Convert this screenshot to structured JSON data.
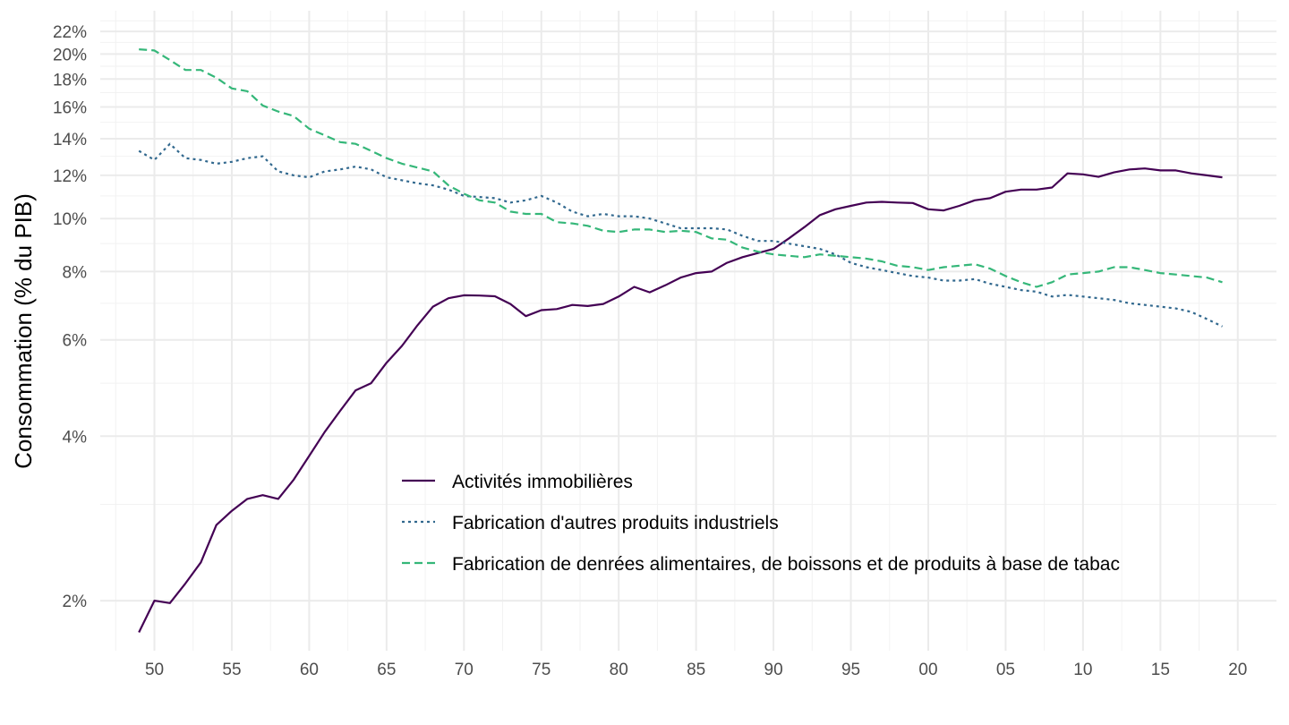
{
  "chart_data": {
    "type": "line",
    "title": "",
    "xlabel": "",
    "ylabel": "Consommation (% du PIB)",
    "y_scale": "log",
    "ylim": [
      1.62,
      24.0
    ],
    "xlim": [
      1946.5,
      2022.5
    ],
    "grid": true,
    "legend_position": "center",
    "x_ticks": [
      {
        "value": 1950,
        "label": "50"
      },
      {
        "value": 1955,
        "label": "55"
      },
      {
        "value": 1960,
        "label": "60"
      },
      {
        "value": 1965,
        "label": "65"
      },
      {
        "value": 1970,
        "label": "70"
      },
      {
        "value": 1975,
        "label": "75"
      },
      {
        "value": 1980,
        "label": "80"
      },
      {
        "value": 1985,
        "label": "85"
      },
      {
        "value": 1990,
        "label": "90"
      },
      {
        "value": 1995,
        "label": "95"
      },
      {
        "value": 2000,
        "label": "00"
      },
      {
        "value": 2005,
        "label": "05"
      },
      {
        "value": 2010,
        "label": "10"
      },
      {
        "value": 2015,
        "label": "15"
      },
      {
        "value": 2020,
        "label": "20"
      }
    ],
    "y_ticks": [
      {
        "value": 2,
        "label": "2%"
      },
      {
        "value": 4,
        "label": "4%"
      },
      {
        "value": 6,
        "label": "6%"
      },
      {
        "value": 8,
        "label": "8%"
      },
      {
        "value": 10,
        "label": "10%"
      },
      {
        "value": 12,
        "label": "12%"
      },
      {
        "value": 14,
        "label": "14%"
      },
      {
        "value": 16,
        "label": "16%"
      },
      {
        "value": 18,
        "label": "18%"
      },
      {
        "value": 20,
        "label": "20%"
      },
      {
        "value": 22,
        "label": "22%"
      }
    ],
    "x": [
      1949,
      1950,
      1951,
      1952,
      1953,
      1954,
      1955,
      1956,
      1957,
      1958,
      1959,
      1960,
      1961,
      1962,
      1963,
      1964,
      1965,
      1966,
      1967,
      1968,
      1969,
      1970,
      1971,
      1972,
      1973,
      1974,
      1975,
      1976,
      1977,
      1978,
      1979,
      1980,
      1981,
      1982,
      1983,
      1984,
      1985,
      1986,
      1987,
      1988,
      1989,
      1990,
      1991,
      1992,
      1993,
      1994,
      1995,
      1996,
      1997,
      1998,
      1999,
      2000,
      2001,
      2002,
      2003,
      2004,
      2005,
      2006,
      2007,
      2008,
      2009,
      2010,
      2011,
      2012,
      2013,
      2014,
      2015,
      2016,
      2017,
      2018,
      2019
    ],
    "series": [
      {
        "name": "Activités immobilières",
        "color": "#440154",
        "dash": "solid",
        "values": [
          1.75,
          2.0,
          1.98,
          2.15,
          2.35,
          2.75,
          2.92,
          3.07,
          3.12,
          3.07,
          3.33,
          3.68,
          4.07,
          4.45,
          4.85,
          5.0,
          5.45,
          5.85,
          6.38,
          6.9,
          7.15,
          7.24,
          7.23,
          7.21,
          6.98,
          6.63,
          6.8,
          6.83,
          6.95,
          6.92,
          6.98,
          7.2,
          7.5,
          7.33,
          7.55,
          7.8,
          7.95,
          8.0,
          8.3,
          8.5,
          8.65,
          8.8,
          9.2,
          9.65,
          10.15,
          10.4,
          10.55,
          10.7,
          10.73,
          10.7,
          10.68,
          10.4,
          10.35,
          10.55,
          10.8,
          10.9,
          11.2,
          11.3,
          11.3,
          11.4,
          12.1,
          12.05,
          11.92,
          12.15,
          12.3,
          12.35,
          12.25,
          12.25,
          12.1,
          12.0,
          11.9
        ]
      },
      {
        "name": "Fabrication d'autres produits industriels",
        "color": "#31688e",
        "dash": "dotted",
        "values": [
          13.3,
          12.8,
          13.7,
          12.9,
          12.8,
          12.6,
          12.7,
          12.9,
          13.0,
          12.2,
          12.0,
          11.9,
          12.2,
          12.3,
          12.45,
          12.3,
          11.9,
          11.75,
          11.6,
          11.5,
          11.3,
          11.0,
          10.95,
          10.9,
          10.7,
          10.8,
          11.0,
          10.7,
          10.3,
          10.1,
          10.2,
          10.1,
          10.1,
          10.0,
          9.8,
          9.6,
          9.6,
          9.6,
          9.55,
          9.3,
          9.1,
          9.1,
          9.0,
          8.9,
          8.8,
          8.6,
          8.3,
          8.15,
          8.05,
          7.95,
          7.85,
          7.8,
          7.7,
          7.7,
          7.75,
          7.6,
          7.5,
          7.4,
          7.35,
          7.2,
          7.25,
          7.2,
          7.15,
          7.1,
          7.0,
          6.95,
          6.9,
          6.85,
          6.75,
          6.55,
          6.35
        ]
      },
      {
        "name": "Fabrication de denrées alimentaires, de boissons et de produits à base de tabac",
        "color": "#35b779",
        "dash": "dashed",
        "values": [
          20.4,
          20.3,
          19.5,
          18.7,
          18.7,
          18.1,
          17.3,
          17.1,
          16.1,
          15.7,
          15.4,
          14.6,
          14.2,
          13.8,
          13.7,
          13.3,
          12.9,
          12.6,
          12.4,
          12.2,
          11.5,
          11.1,
          10.8,
          10.7,
          10.3,
          10.2,
          10.2,
          9.85,
          9.8,
          9.7,
          9.5,
          9.45,
          9.55,
          9.55,
          9.45,
          9.5,
          9.45,
          9.2,
          9.15,
          8.85,
          8.7,
          8.6,
          8.55,
          8.5,
          8.6,
          8.55,
          8.5,
          8.45,
          8.35,
          8.2,
          8.15,
          8.05,
          8.15,
          8.2,
          8.25,
          8.1,
          7.85,
          7.65,
          7.5,
          7.65,
          7.9,
          7.95,
          8.0,
          8.15,
          8.15,
          8.05,
          7.95,
          7.9,
          7.85,
          7.8,
          7.65
        ]
      }
    ]
  }
}
